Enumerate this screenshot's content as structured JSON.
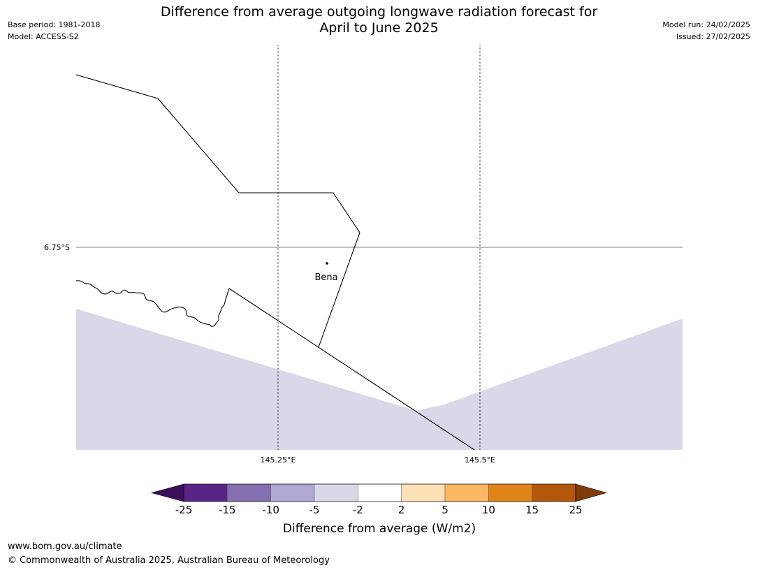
{
  "header": {
    "title_line1": "Difference from average outgoing longwave radiation forecast for",
    "title_line2": "April to June 2025",
    "base_period": "Base period: 1981-2018",
    "model": "Model: ACCESS-S2",
    "model_run": "Model run: 24/02/2025",
    "issued": "Issued: 27/02/2025"
  },
  "map": {
    "lat_label": "6.75°S",
    "lon_labels": [
      "145.25°E",
      "145.5°E"
    ],
    "place_label": "Bena",
    "shaded_category": "-5 to -2",
    "shade_color": "#d8d8e9"
  },
  "colorbar": {
    "label": "Difference from average (W/m2)",
    "ticks": [
      "-25",
      "-15",
      "-10",
      "-5",
      "-2",
      "2",
      "5",
      "10",
      "15",
      "25"
    ],
    "low_extend_color": "#3b0f5a",
    "colors": [
      "#5a2387",
      "#8270b0",
      "#b0a7d3",
      "#d8d8e9",
      "#ffffff",
      "#fde0b6",
      "#fbb661",
      "#e18418",
      "#b3560a"
    ],
    "high_extend_color": "#7f3b08"
  },
  "footer": {
    "url": "www.bom.gov.au/climate",
    "copyright": "© Commonwealth of Australia 2025, Australian Bureau of Meteorology"
  }
}
